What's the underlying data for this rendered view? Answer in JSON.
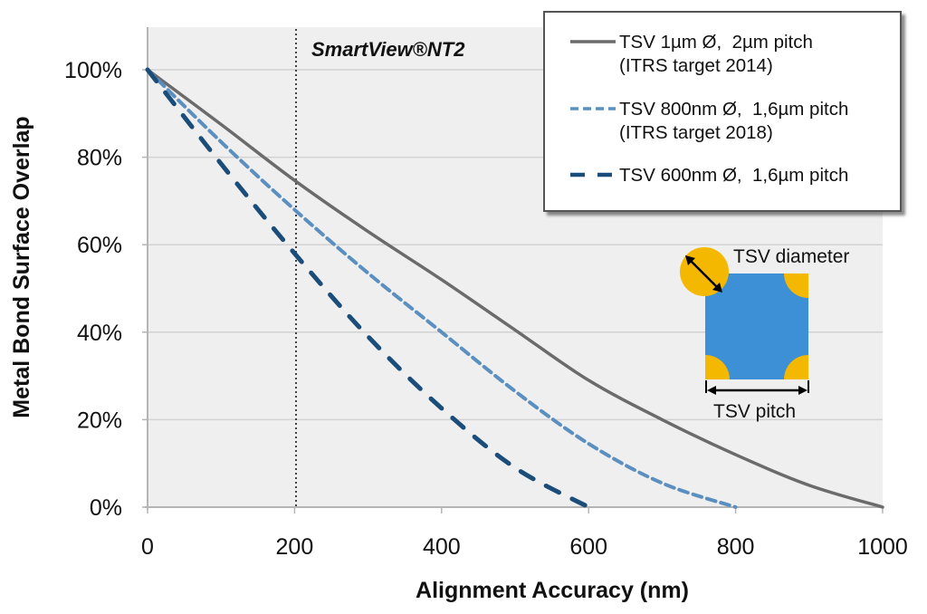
{
  "chart_data": {
    "type": "line",
    "title": "",
    "xlabel": "Alignment Accuracy (nm)",
    "ylabel": "Metal Bond Surface Overlap",
    "xlim": [
      0,
      1000
    ],
    "ylim": [
      0,
      100
    ],
    "x_ticks": [
      "0",
      "200",
      "400",
      "600",
      "800",
      "1000"
    ],
    "y_ticks": [
      "0%",
      "20%",
      "40%",
      "60%",
      "80%",
      "100%"
    ],
    "grid": "horizontal",
    "legend_position": "top-right",
    "series": [
      {
        "name": "TSV 1µm Ø,  2µm pitch (ITRS target 2014)",
        "style": "solid",
        "color": "#6b6b6b",
        "x": [
          0,
          100,
          200,
          300,
          400,
          500,
          600,
          700,
          800,
          900,
          1000
        ],
        "y": [
          100,
          87.5,
          74.7,
          63,
          52,
          40.5,
          29,
          20,
          12,
          5,
          0
        ]
      },
      {
        "name": "TSV 800nm Ø,  1,6µm pitch (ITRS target 2018)",
        "style": "short-dash",
        "color": "#5b8fc0",
        "x": [
          0,
          100,
          200,
          300,
          400,
          500,
          600,
          700,
          800
        ],
        "y": [
          100,
          83.5,
          68,
          53.5,
          40,
          26.5,
          14.5,
          5.5,
          0
        ]
      },
      {
        "name": "TSV 600nm Ø,  1,6µm pitch",
        "style": "long-dash",
        "color": "#1b4d7a",
        "x": [
          0,
          100,
          200,
          300,
          400,
          500,
          600
        ],
        "y": [
          100,
          78.5,
          58,
          39,
          22.6,
          9,
          0
        ]
      }
    ],
    "annotations": [
      {
        "type": "vertical-dotted-line",
        "x": 200,
        "label": "SmartView®NT2"
      },
      {
        "type": "inset-diagram",
        "labels": [
          "TSV diameter",
          "TSV pitch"
        ]
      }
    ]
  },
  "legend": {
    "items": [
      {
        "line1": "TSV 1µm Ø,  2µm pitch",
        "line2": "(ITRS target 2014)"
      },
      {
        "line1": "TSV 800nm Ø,  1,6µm pitch",
        "line2": "(ITRS target 2018)"
      },
      {
        "line1": "TSV 600nm Ø,  1,6µm pitch",
        "line2": ""
      }
    ]
  },
  "annotations": {
    "smartview": "SmartView®NT2",
    "tsv_diameter": "TSV diameter",
    "tsv_pitch": "TSV pitch"
  },
  "colors": {
    "plot_bg": "#efefef",
    "grid": "#d2d2d2",
    "gold": "#f5b800",
    "pad_blue": "#3d8fd6"
  }
}
